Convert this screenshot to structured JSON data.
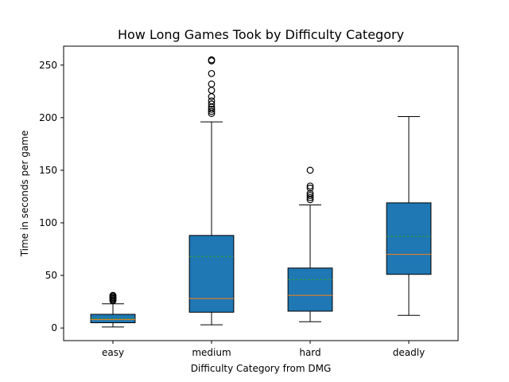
{
  "chart_data": {
    "type": "box",
    "title": "How Long Games Took by Difficulty Category",
    "xlabel": "Difficulty Category from DMG",
    "ylabel": "Time in seconds per game",
    "ylim": [
      -12,
      268
    ],
    "yticks": [
      0,
      50,
      100,
      150,
      200,
      250
    ],
    "grid": false,
    "legend": "none",
    "colors": {
      "box_fill": "#1f77b4",
      "median_line": "#ff7f0e",
      "mean_line": "#2ca02c",
      "outline": "#000000",
      "flier": "#000000"
    },
    "categories": [
      "easy",
      "medium",
      "hard",
      "deadly"
    ],
    "boxes": [
      {
        "category": "easy",
        "whisker_low": 1,
        "q1": 5,
        "median": 8,
        "mean": 9,
        "q3": 13,
        "whisker_high": 23,
        "fliers": [
          26,
          27,
          28,
          29,
          30,
          31
        ]
      },
      {
        "category": "medium",
        "whisker_low": 3,
        "q1": 15,
        "median": 28,
        "mean": 68,
        "q3": 88,
        "whisker_high": 196,
        "fliers": [
          204,
          206,
          208,
          210,
          213,
          216,
          220,
          226,
          232,
          242,
          254,
          255
        ]
      },
      {
        "category": "hard",
        "whisker_low": 6,
        "q1": 16,
        "median": 31,
        "mean": 46,
        "q3": 57,
        "whisker_high": 117,
        "fliers": [
          122,
          124,
          126,
          128,
          133,
          135,
          150
        ]
      },
      {
        "category": "deadly",
        "whisker_low": 12,
        "q1": 51,
        "median": 70,
        "mean": 87,
        "q3": 119,
        "whisker_high": 201,
        "fliers": []
      }
    ]
  }
}
